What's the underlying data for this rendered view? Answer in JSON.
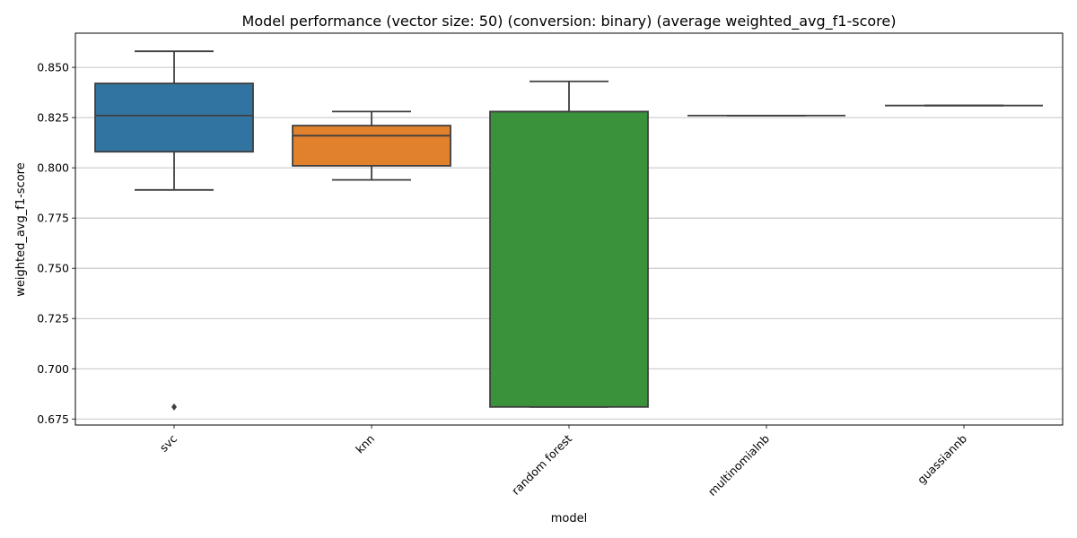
{
  "chart_data": {
    "type": "box",
    "title": "Model performance (vector size: 50) (conversion: binary) (average weighted_avg_f1-score)",
    "xlabel": "model",
    "ylabel": "weighted_avg_f1-score",
    "ylim": [
      0.672,
      0.867
    ],
    "yticks": [
      "0.675",
      "0.700",
      "0.725",
      "0.750",
      "0.775",
      "0.800",
      "0.825",
      "0.850"
    ],
    "grid": "horizontal",
    "categories": [
      "svc",
      "knn",
      "random forest",
      "multinomialnb",
      "guassiannb"
    ],
    "boxes": [
      {
        "whisker_low": 0.789,
        "q1": 0.808,
        "median": 0.826,
        "q3": 0.842,
        "whisker_high": 0.858,
        "outliers": [
          0.681
        ]
      },
      {
        "whisker_low": 0.794,
        "q1": 0.801,
        "median": 0.816,
        "q3": 0.821,
        "whisker_high": 0.828,
        "outliers": []
      },
      {
        "whisker_low": 0.681,
        "q1": 0.681,
        "median": 0.828,
        "q3": 0.828,
        "whisker_high": 0.843,
        "outliers": []
      },
      {
        "whisker_low": 0.826,
        "q1": 0.826,
        "median": 0.826,
        "q3": 0.826,
        "whisker_high": 0.826,
        "outliers": []
      },
      {
        "whisker_low": 0.831,
        "q1": 0.831,
        "median": 0.831,
        "q3": 0.831,
        "whisker_high": 0.831,
        "outliers": []
      }
    ],
    "colors": [
      "#3274a1",
      "#e1812c",
      "#3a923a",
      "#c03d3e",
      "#9372b2"
    ],
    "edge_color": "#3f3f3f",
    "grid_color": "#b0b0b0"
  }
}
